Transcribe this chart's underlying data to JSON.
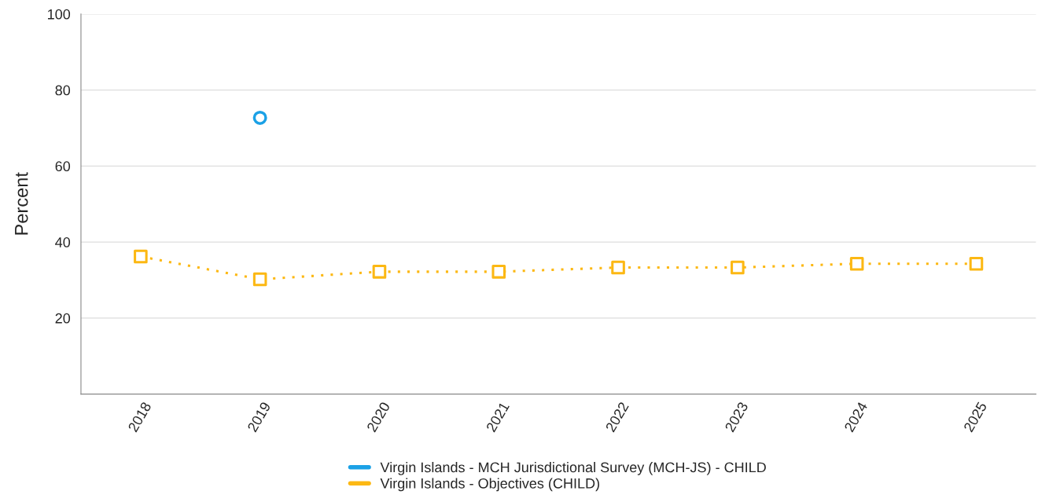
{
  "chart_data": {
    "type": "line",
    "ylabel": "Percent",
    "categories": [
      "2018",
      "2019",
      "2020",
      "2021",
      "2022",
      "2023",
      "2024",
      "2025"
    ],
    "series": [
      {
        "name": "Virgin Islands - MCH Jurisdictional Survey (MCH-JS) - CHILD",
        "color": "#1ba1e6",
        "type": "scatter",
        "marker": "circle",
        "values": [
          null,
          72.7,
          null,
          null,
          null,
          null,
          null,
          null
        ]
      },
      {
        "name": "Virgin Islands - Objectives (CHILD)",
        "color": "#fcb813",
        "marker": "square",
        "line_style": "dotted",
        "values": [
          36.2,
          30.2,
          32.2,
          32.2,
          33.3,
          33.3,
          34.3,
          34.3
        ]
      }
    ],
    "ylim": [
      0,
      100
    ],
    "yticks": [
      {
        "value": 0,
        "label": null
      },
      20,
      40,
      60,
      80,
      100
    ],
    "grid": "y",
    "legend": "bottom"
  }
}
